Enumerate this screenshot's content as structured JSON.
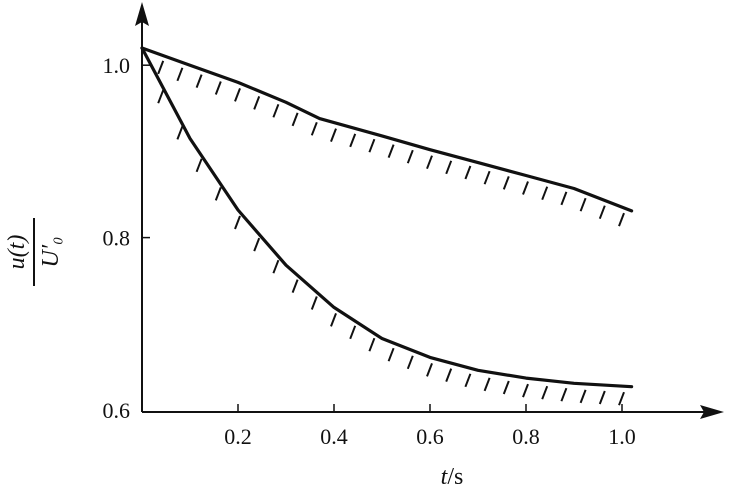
{
  "chart_data": {
    "type": "line",
    "x_ticks": [
      "0.2",
      "0.4",
      "0.6",
      "0.8",
      "1.0"
    ],
    "y_ticks": [
      "0.6",
      "0.8",
      "1.0"
    ],
    "xlim": [
      0,
      1.2
    ],
    "ylim": [
      0.6,
      1.05
    ],
    "xlabel": {
      "var": "t",
      "unit": "/s"
    },
    "ylabel": {
      "numerator": "u(t)",
      "denominator": "U′₀"
    },
    "grid": false,
    "legend": "none",
    "series": [
      {
        "x": [
          0,
          0.1,
          0.2,
          0.3,
          0.37,
          0.5,
          0.6,
          0.7,
          0.8,
          0.9,
          1.02
        ],
        "values": [
          1.02,
          1.0,
          0.98,
          0.957,
          0.938,
          0.918,
          0.902,
          0.887,
          0.872,
          0.857,
          0.831
        ]
      },
      {
        "x": [
          0,
          0.1,
          0.2,
          0.3,
          0.4,
          0.5,
          0.6,
          0.7,
          0.8,
          0.9,
          1.02
        ],
        "values": [
          1.02,
          0.915,
          0.832,
          0.768,
          0.719,
          0.683,
          0.661,
          0.646,
          0.637,
          0.631,
          0.627
        ]
      }
    ],
    "colors": {
      "line": "#111111"
    }
  }
}
